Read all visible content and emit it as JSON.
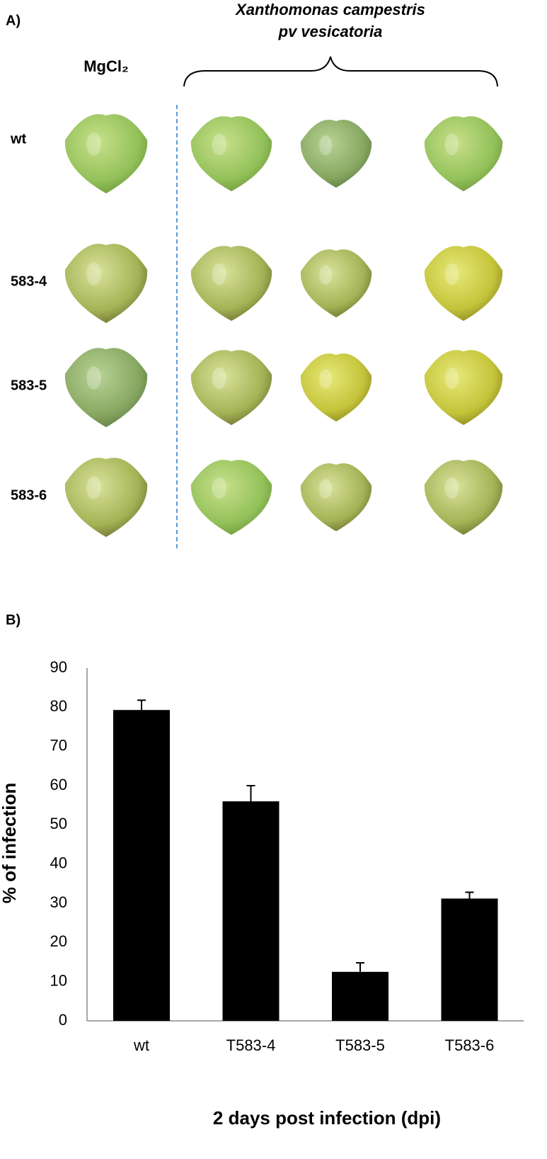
{
  "panel_a": {
    "label": "A)",
    "title_line1": "Xanthomonas campestris",
    "title_line2": "pv vesicatoria",
    "control_label": "MgCl₂",
    "rows": [
      "wt",
      "583-4",
      "583-5",
      "583-6"
    ]
  },
  "panel_b_label": "B)",
  "chart_data": {
    "type": "bar",
    "categories": [
      "wt",
      "T583-4",
      "T583-5",
      "T583-6"
    ],
    "values": [
      79.3,
      56,
      12.5,
      31.2
    ],
    "errors": [
      2.5,
      4,
      2.3,
      1.6
    ],
    "color": "#000000",
    "ylim": [
      0,
      90
    ],
    "yticks": [
      0,
      10,
      20,
      30,
      40,
      50,
      60,
      70,
      80,
      90
    ],
    "y_label": "% of infection",
    "x_label": "2 days post infection (dpi)",
    "grid": false
  }
}
